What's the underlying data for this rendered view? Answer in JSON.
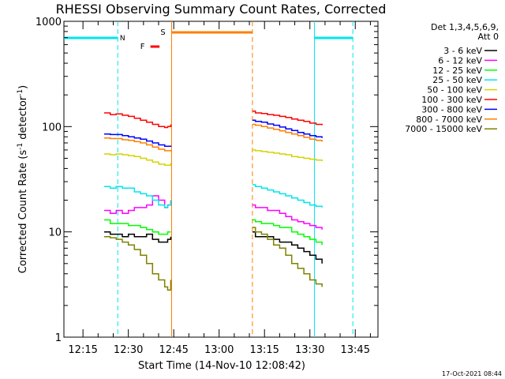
{
  "chart_data": {
    "type": "line",
    "title": "RHESSI Observing Summary Count Rates, Corrected",
    "xlabel": "Start Time (14-Nov-10 12:08:42)",
    "ylabel_prefix": "Corrected Count Rate (s",
    "ylabel_sup": "-1",
    "ylabel_mid": " detector",
    "ylabel_sup2": "-1",
    "ylabel_suffix": ")",
    "y_scale": "log",
    "ylim": [
      1,
      1000
    ],
    "xlim_minutes": [
      8.7,
      48.7
    ],
    "x_ticks": [
      {
        "t": 15,
        "label": "12:15"
      },
      {
        "t": 30,
        "label": "12:30"
      },
      {
        "t": 45,
        "label": "12:45"
      },
      {
        "t": 60,
        "label": "13:00"
      },
      {
        "t": 75,
        "label": "13:15"
      },
      {
        "t": 90,
        "label": "13:30"
      },
      {
        "t": 105,
        "label": "13:45"
      }
    ],
    "y_ticks": [
      {
        "v": 1,
        "label": "1"
      },
      {
        "v": 10,
        "label": "10"
      },
      {
        "v": 100,
        "label": "100"
      },
      {
        "v": 1000,
        "label": "1000"
      }
    ],
    "legend_header": [
      "Det 1,3,4,5,6,9,",
      "Att 0"
    ],
    "footer_timestamp": "17-Oct-2021 08:44",
    "flags": [
      {
        "label": "N",
        "color": "#00e5ee"
      },
      {
        "label": "S",
        "color": "#ff7f00"
      },
      {
        "label": "F",
        "color": "#ff0000"
      }
    ],
    "intervals": {
      "night": [
        [
          8.7,
          26.5
        ],
        [
          91.5,
          104.2
        ]
      ],
      "saa": [
        [
          44.3,
          71.0
        ]
      ],
      "flare": [
        [
          37.3,
          40.3
        ]
      ]
    },
    "series": [
      {
        "name": "3 - 6 keV",
        "color": "#000000",
        "values": [
          [
            22,
            10
          ],
          [
            24,
            9.5
          ],
          [
            26,
            9.5
          ],
          [
            28,
            9
          ],
          [
            30,
            9.5
          ],
          [
            32,
            9
          ],
          [
            34,
            9
          ],
          [
            36,
            9.5
          ],
          [
            38,
            8.5
          ],
          [
            40,
            8
          ],
          [
            42,
            8
          ],
          [
            43,
            8.5
          ],
          [
            44,
            9
          ],
          [
            71,
            10
          ],
          [
            72,
            9
          ],
          [
            74,
            9
          ],
          [
            76,
            9
          ],
          [
            78,
            8.5
          ],
          [
            80,
            8
          ],
          [
            82,
            8
          ],
          [
            84,
            7.5
          ],
          [
            86,
            7
          ],
          [
            88,
            6.5
          ],
          [
            90,
            6
          ],
          [
            92,
            5.5
          ],
          [
            94,
            5
          ]
        ]
      },
      {
        "name": "6 - 12 keV",
        "color": "#ff00ff",
        "values": [
          [
            22,
            16
          ],
          [
            24,
            15
          ],
          [
            26,
            16
          ],
          [
            28,
            15
          ],
          [
            30,
            16
          ],
          [
            32,
            17
          ],
          [
            34,
            17
          ],
          [
            36,
            18
          ],
          [
            38,
            22
          ],
          [
            40,
            20
          ],
          [
            42,
            17
          ],
          [
            43,
            18
          ],
          [
            44,
            20
          ],
          [
            71,
            18
          ],
          [
            72,
            17
          ],
          [
            74,
            17
          ],
          [
            76,
            16
          ],
          [
            78,
            16
          ],
          [
            80,
            15
          ],
          [
            82,
            14
          ],
          [
            84,
            13
          ],
          [
            86,
            12.5
          ],
          [
            88,
            12
          ],
          [
            90,
            11.5
          ],
          [
            92,
            11
          ],
          [
            94,
            10.5
          ]
        ]
      },
      {
        "name": "12 - 25 keV",
        "color": "#00ff00",
        "values": [
          [
            22,
            13
          ],
          [
            24,
            12
          ],
          [
            26,
            12
          ],
          [
            28,
            12
          ],
          [
            30,
            11.5
          ],
          [
            32,
            11.5
          ],
          [
            34,
            11
          ],
          [
            36,
            10.5
          ],
          [
            38,
            10
          ],
          [
            40,
            9.5
          ],
          [
            42,
            9.5
          ],
          [
            43,
            10
          ],
          [
            44,
            10
          ],
          [
            71,
            13
          ],
          [
            72,
            12.5
          ],
          [
            74,
            12
          ],
          [
            76,
            12
          ],
          [
            78,
            11.5
          ],
          [
            80,
            11
          ],
          [
            82,
            11
          ],
          [
            84,
            10
          ],
          [
            86,
            9.5
          ],
          [
            88,
            9
          ],
          [
            90,
            8.5
          ],
          [
            92,
            8
          ],
          [
            94,
            7.5
          ]
        ]
      },
      {
        "name": "25 - 50 keV",
        "color": "#00e5ee",
        "values": [
          [
            22,
            27
          ],
          [
            24,
            26
          ],
          [
            26,
            27
          ],
          [
            28,
            26
          ],
          [
            30,
            26
          ],
          [
            32,
            24
          ],
          [
            34,
            23
          ],
          [
            36,
            22
          ],
          [
            38,
            20
          ],
          [
            40,
            18
          ],
          [
            42,
            17
          ],
          [
            43,
            18
          ],
          [
            44,
            20
          ],
          [
            71,
            28
          ],
          [
            72,
            27
          ],
          [
            74,
            26
          ],
          [
            76,
            25
          ],
          [
            78,
            24
          ],
          [
            80,
            23
          ],
          [
            82,
            22
          ],
          [
            84,
            21
          ],
          [
            86,
            20
          ],
          [
            88,
            19
          ],
          [
            90,
            18
          ],
          [
            92,
            17.5
          ],
          [
            94,
            17
          ]
        ]
      },
      {
        "name": "50 - 100 keV",
        "color": "#d4d400",
        "values": [
          [
            22,
            55
          ],
          [
            24,
            54
          ],
          [
            26,
            55
          ],
          [
            28,
            54
          ],
          [
            30,
            53
          ],
          [
            32,
            52
          ],
          [
            34,
            50
          ],
          [
            36,
            48
          ],
          [
            38,
            46
          ],
          [
            40,
            44
          ],
          [
            42,
            43
          ],
          [
            43,
            43
          ],
          [
            44,
            45
          ],
          [
            71,
            60
          ],
          [
            72,
            59
          ],
          [
            74,
            58
          ],
          [
            76,
            57
          ],
          [
            78,
            56
          ],
          [
            80,
            55
          ],
          [
            82,
            54
          ],
          [
            84,
            52
          ],
          [
            86,
            51
          ],
          [
            88,
            50
          ],
          [
            90,
            49
          ],
          [
            92,
            48
          ],
          [
            94,
            47
          ]
        ]
      },
      {
        "name": "100 - 300 keV",
        "color": "#ff0000",
        "values": [
          [
            22,
            135
          ],
          [
            24,
            130
          ],
          [
            26,
            132
          ],
          [
            28,
            128
          ],
          [
            30,
            125
          ],
          [
            32,
            120
          ],
          [
            34,
            115
          ],
          [
            36,
            110
          ],
          [
            38,
            105
          ],
          [
            40,
            100
          ],
          [
            42,
            98
          ],
          [
            43,
            100
          ],
          [
            44,
            105
          ],
          [
            71,
            140
          ],
          [
            72,
            135
          ],
          [
            74,
            133
          ],
          [
            76,
            130
          ],
          [
            78,
            128
          ],
          [
            80,
            125
          ],
          [
            82,
            122
          ],
          [
            84,
            118
          ],
          [
            86,
            115
          ],
          [
            88,
            112
          ],
          [
            90,
            108
          ],
          [
            92,
            105
          ],
          [
            94,
            103
          ]
        ]
      },
      {
        "name": "300 - 800 keV",
        "color": "#0000ff",
        "values": [
          [
            22,
            85
          ],
          [
            24,
            84
          ],
          [
            26,
            84
          ],
          [
            28,
            82
          ],
          [
            30,
            80
          ],
          [
            32,
            78
          ],
          [
            34,
            76
          ],
          [
            36,
            73
          ],
          [
            38,
            70
          ],
          [
            40,
            67
          ],
          [
            42,
            65
          ],
          [
            43,
            65
          ],
          [
            44,
            66
          ],
          [
            71,
            115
          ],
          [
            72,
            112
          ],
          [
            74,
            110
          ],
          [
            76,
            106
          ],
          [
            78,
            103
          ],
          [
            80,
            99
          ],
          [
            82,
            95
          ],
          [
            84,
            92
          ],
          [
            86,
            88
          ],
          [
            88,
            85
          ],
          [
            90,
            82
          ],
          [
            92,
            80
          ],
          [
            94,
            78
          ]
        ]
      },
      {
        "name": "800 - 7000 keV",
        "color": "#ff7f00",
        "values": [
          [
            22,
            78
          ],
          [
            24,
            77
          ],
          [
            26,
            77
          ],
          [
            28,
            75
          ],
          [
            30,
            74
          ],
          [
            32,
            72
          ],
          [
            34,
            70
          ],
          [
            36,
            67
          ],
          [
            38,
            64
          ],
          [
            40,
            61
          ],
          [
            42,
            59
          ],
          [
            43,
            59
          ],
          [
            44,
            60
          ],
          [
            71,
            105
          ],
          [
            72,
            103
          ],
          [
            74,
            100
          ],
          [
            76,
            97
          ],
          [
            78,
            94
          ],
          [
            80,
            91
          ],
          [
            82,
            88
          ],
          [
            84,
            85
          ],
          [
            86,
            82
          ],
          [
            88,
            79
          ],
          [
            90,
            76
          ],
          [
            92,
            74
          ],
          [
            94,
            72
          ]
        ]
      },
      {
        "name": "7000 - 15000 keV",
        "color": "#808000",
        "values": [
          [
            22,
            9
          ],
          [
            24,
            8.8
          ],
          [
            26,
            8.5
          ],
          [
            28,
            8
          ],
          [
            30,
            7.5
          ],
          [
            32,
            6.8
          ],
          [
            34,
            6
          ],
          [
            36,
            5
          ],
          [
            38,
            4
          ],
          [
            40,
            3.5
          ],
          [
            42,
            3
          ],
          [
            43,
            2.8
          ],
          [
            44,
            3.5
          ],
          [
            71,
            11
          ],
          [
            72,
            10
          ],
          [
            74,
            9.5
          ],
          [
            76,
            8.5
          ],
          [
            78,
            7.5
          ],
          [
            80,
            7
          ],
          [
            82,
            6
          ],
          [
            84,
            5
          ],
          [
            86,
            4.5
          ],
          [
            88,
            4
          ],
          [
            90,
            3.5
          ],
          [
            92,
            3.2
          ],
          [
            94,
            3
          ]
        ]
      }
    ]
  }
}
